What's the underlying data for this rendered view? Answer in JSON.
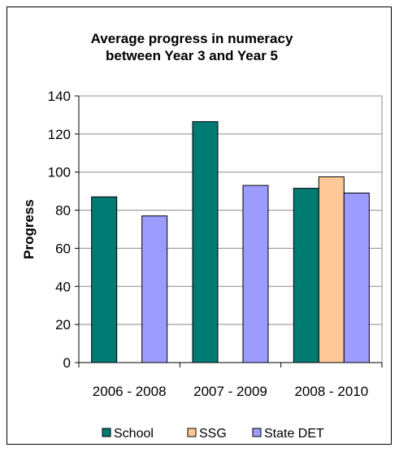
{
  "chart_data": {
    "type": "bar",
    "title_lines": [
      "Average progress in numeracy",
      "between Year 3 and Year 5"
    ],
    "ylabel": "Progress",
    "xlabel": "",
    "categories": [
      "2006 - 2008",
      "2007 - 2009",
      "2008 - 2010"
    ],
    "ylim": [
      0,
      140
    ],
    "yticks": [
      0,
      20,
      40,
      60,
      80,
      100,
      120,
      140
    ],
    "grid": "horizontal",
    "legend_position": "bottom",
    "series": [
      {
        "name": "School",
        "color": "#007B73",
        "values": [
          87,
          126.5,
          91.5
        ]
      },
      {
        "name": "SSG",
        "color": "#FFC896",
        "values": [
          null,
          null,
          97.5
        ]
      },
      {
        "name": "State DET",
        "color": "#9C9CFF",
        "values": [
          77,
          93,
          89
        ]
      }
    ]
  }
}
